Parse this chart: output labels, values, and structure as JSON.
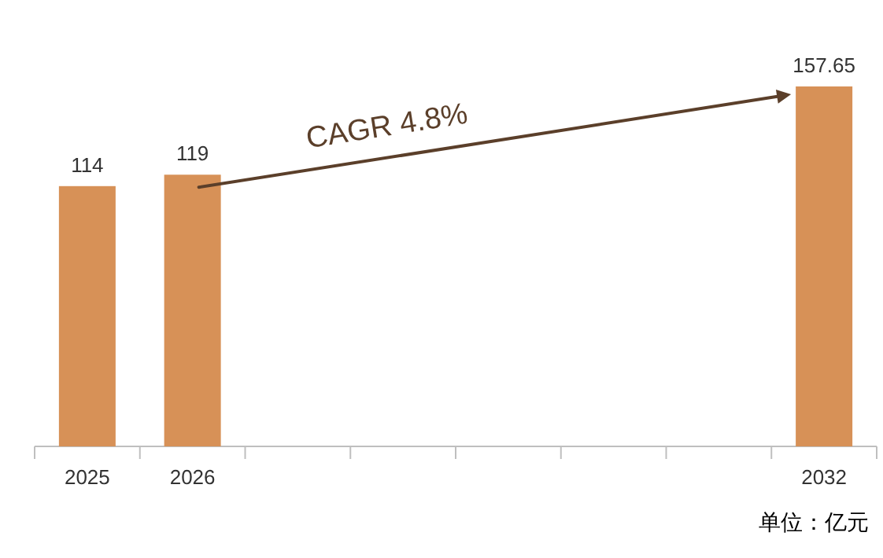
{
  "chart_data": {
    "type": "bar",
    "categories": [
      "2025",
      "2026",
      null,
      null,
      null,
      null,
      null,
      "2032"
    ],
    "values": [
      114,
      119,
      null,
      null,
      null,
      null,
      null,
      157.65
    ],
    "color": "#d79157",
    "data_labels": true,
    "annotations": [
      "CAGR 4.8%",
      "单位：亿元"
    ]
  }
}
